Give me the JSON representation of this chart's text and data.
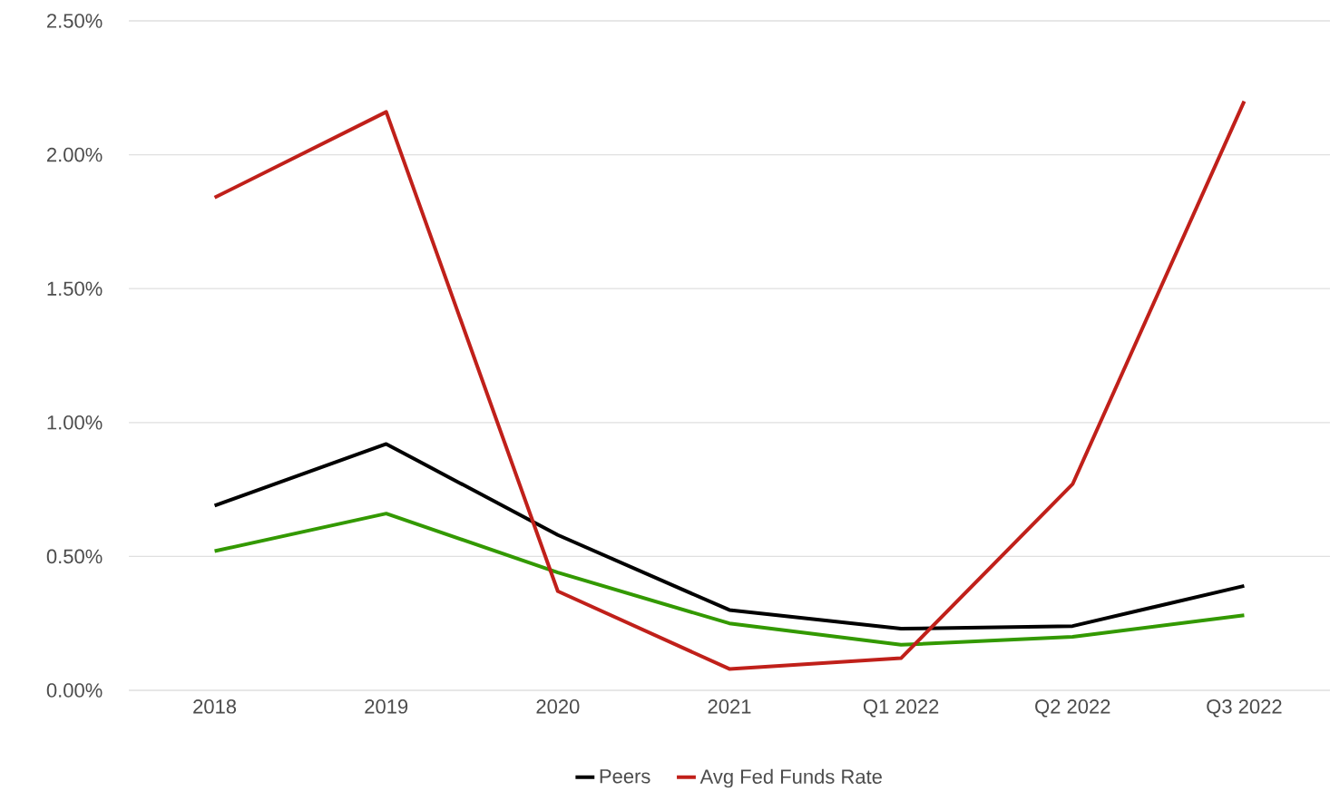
{
  "chart_data": {
    "type": "line",
    "categories": [
      "2018",
      "2019",
      "2020",
      "2021",
      "Q1 2022",
      "Q2 2022",
      "Q3 2022"
    ],
    "series": [
      {
        "color": "#339900",
        "values": [
          0.52,
          0.66,
          0.44,
          0.25,
          0.17,
          0.2,
          0.28
        ]
      },
      {
        "name": "Peers",
        "color": "#000000",
        "values": [
          0.69,
          0.92,
          0.58,
          0.3,
          0.23,
          0.24,
          0.39
        ]
      },
      {
        "name": "Avg Fed Funds Rate",
        "color": "#c0201a",
        "values": [
          1.84,
          2.16,
          0.37,
          0.08,
          0.12,
          0.77,
          2.2
        ]
      }
    ],
    "ylim": [
      0,
      2.5
    ],
    "yticks": [
      {
        "value": 0,
        "label": "0.00%"
      },
      {
        "value": 0.5,
        "label": "0.50%"
      },
      {
        "value": 1,
        "label": "1.00%"
      },
      {
        "value": 1.5,
        "label": "1.50%"
      },
      {
        "value": 2,
        "label": "2.00%"
      },
      {
        "value": 2.5,
        "label": "2.50%"
      }
    ],
    "grid": "y",
    "legend": "bottom",
    "marker": "none",
    "line_style": "solid"
  }
}
